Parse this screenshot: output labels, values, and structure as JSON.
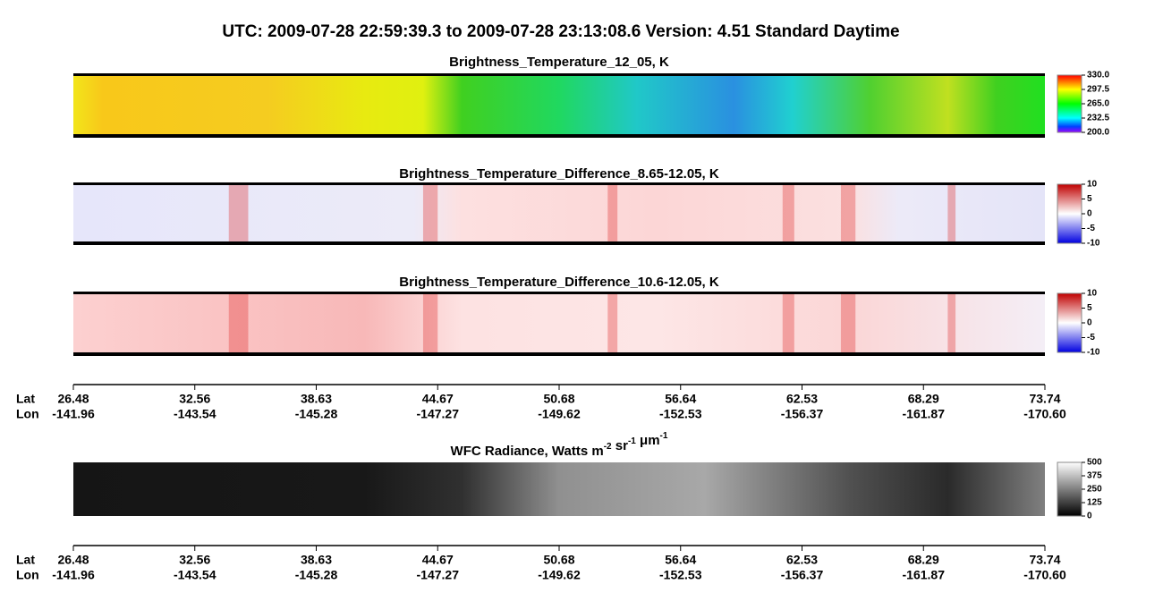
{
  "header": {
    "title": "UTC:  2009-07-28   22:59:39.3  to  2009-07-28   23:13:08.6    Version: 4.51  Standard Daytime"
  },
  "panels": [
    {
      "title": [
        [
          "Brightness_Temperature_12_05, K",
          ""
        ]
      ],
      "colorbar": [
        "330.0",
        "297.5",
        "265.0",
        "232.5",
        "200.0"
      ]
    },
    {
      "title": [
        [
          "Brightness_Temperature_Difference_8.65-12.05, K",
          ""
        ]
      ],
      "colorbar": [
        "10",
        "5",
        "0",
        "-5",
        "-10"
      ]
    },
    {
      "title": [
        [
          "Brightness_Temperature_Difference_10.6-12.05, K",
          ""
        ]
      ],
      "colorbar": [
        "10",
        "5",
        "0",
        "-5",
        "-10"
      ]
    },
    {
      "title": [
        [
          "WFC Radiance, Watts m",
          "-2"
        ],
        [
          " sr",
          "-1"
        ],
        [
          " μm",
          "-1"
        ]
      ],
      "colorbar": [
        "500",
        "375",
        "250",
        "125",
        "0"
      ]
    }
  ],
  "axes": [
    {
      "lat_label": "Lat",
      "lon_label": "Lon",
      "lat": [
        "26.48",
        "32.56",
        "38.63",
        "44.67",
        "50.68",
        "56.64",
        "62.53",
        "68.29",
        "73.74"
      ],
      "lon": [
        "-141.96",
        "-143.54",
        "-145.28",
        "-147.27",
        "-149.62",
        "-152.53",
        "-156.37",
        "-161.87",
        "-170.60"
      ]
    },
    {
      "lat_label": "Lat",
      "lon_label": "Lon",
      "lat": [
        "26.48",
        "32.56",
        "38.63",
        "44.67",
        "50.68",
        "56.64",
        "62.53",
        "68.29",
        "73.74"
      ],
      "lon": [
        "-141.96",
        "-143.54",
        "-145.28",
        "-147.27",
        "-149.62",
        "-152.53",
        "-156.37",
        "-161.87",
        "-170.60"
      ]
    }
  ]
}
